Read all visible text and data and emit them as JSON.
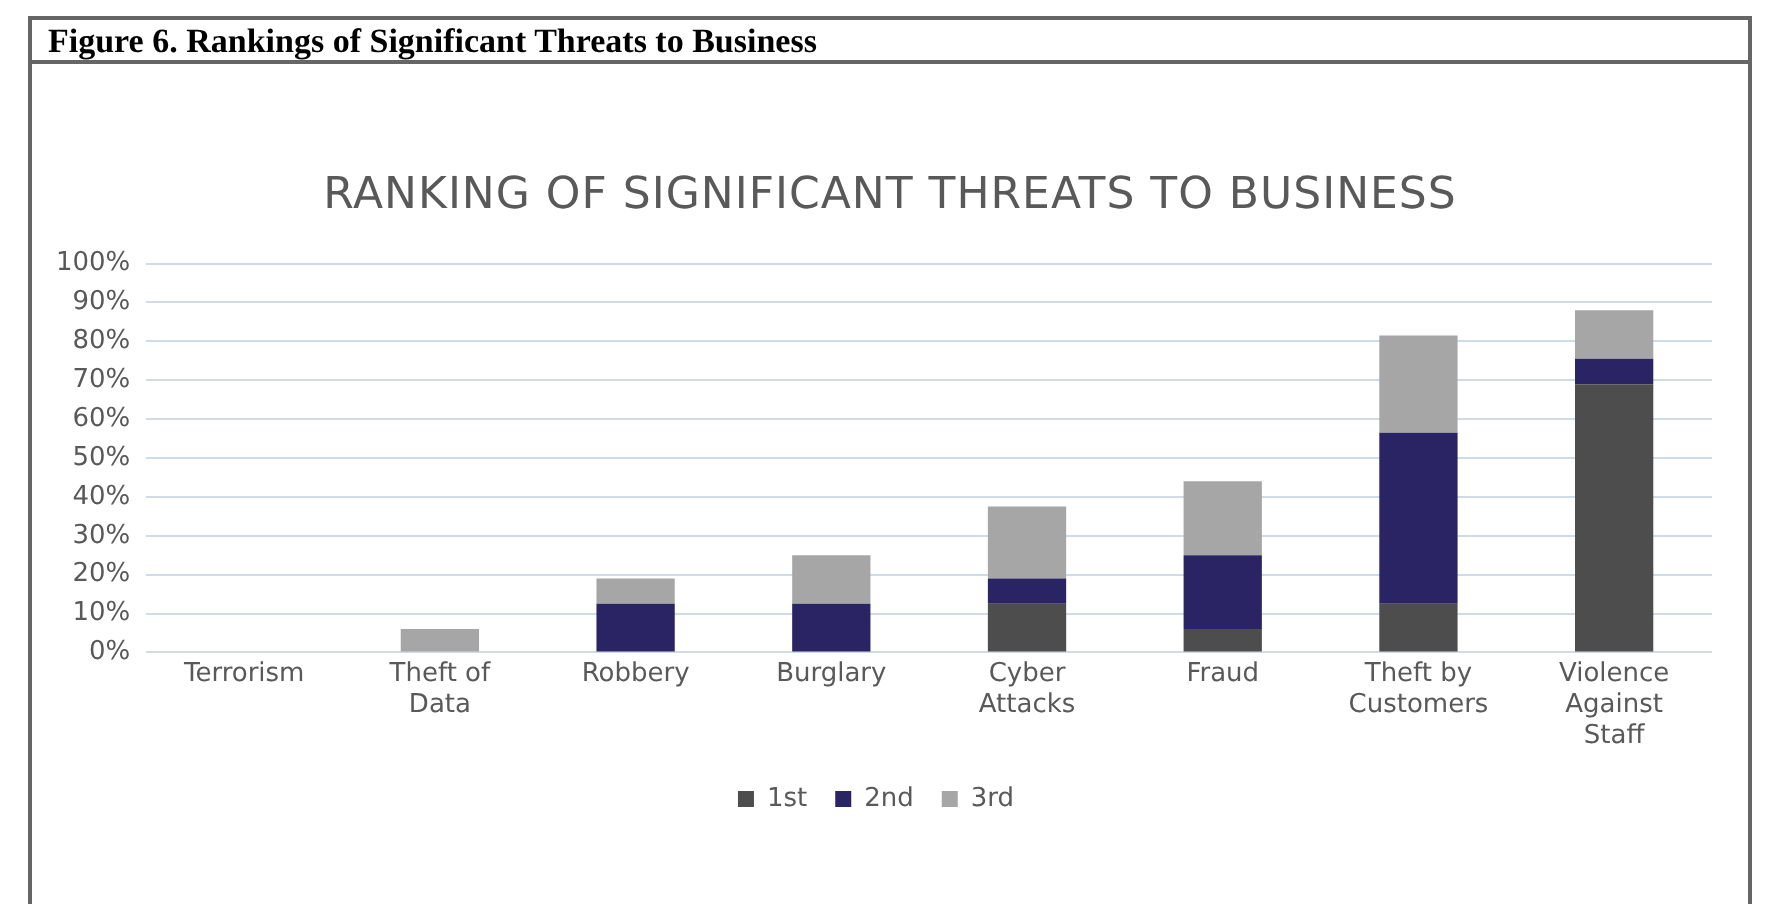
{
  "chart_data": {
    "type": "bar",
    "title": "Figure 6. Rankings of Significant Threats to Business",
    "subtitle": "RANKING OF SIGNIFICANT THREATS TO BUSINESS",
    "categories": [
      "Terrorism",
      "Theft of Data",
      "Robbery",
      "Burglary",
      "Cyber Attacks",
      "Fraud",
      "Theft by Customers",
      "Violence Against Staff"
    ],
    "stacked": true,
    "series": [
      {
        "name": "1st",
        "color": "#4d4d4d",
        "values": [
          0,
          0,
          0,
          0,
          12.5,
          6,
          12.5,
          69
        ]
      },
      {
        "name": "2nd",
        "color": "#2b2464",
        "values": [
          0,
          0,
          12.5,
          12.5,
          6.5,
          19,
          44,
          6.5
        ]
      },
      {
        "name": "3rd",
        "color": "#a6a6a6",
        "values": [
          0,
          6,
          6.5,
          12.5,
          18.5,
          19,
          25,
          12.5
        ]
      }
    ],
    "ylim": [
      0,
      100
    ],
    "yticks": [
      {
        "value": 0,
        "label": "0%"
      },
      {
        "value": 10,
        "label": "10%"
      },
      {
        "value": 20,
        "label": "20%"
      },
      {
        "value": 30,
        "label": "30%"
      },
      {
        "value": 40,
        "label": "40%"
      },
      {
        "value": 50,
        "label": "50%"
      },
      {
        "value": 60,
        "label": "60%"
      },
      {
        "value": 70,
        "label": "70%"
      },
      {
        "value": 80,
        "label": "80%"
      },
      {
        "value": 90,
        "label": "90%"
      },
      {
        "value": 100,
        "label": "100%"
      }
    ],
    "grid": "y",
    "legend": "bottom"
  }
}
